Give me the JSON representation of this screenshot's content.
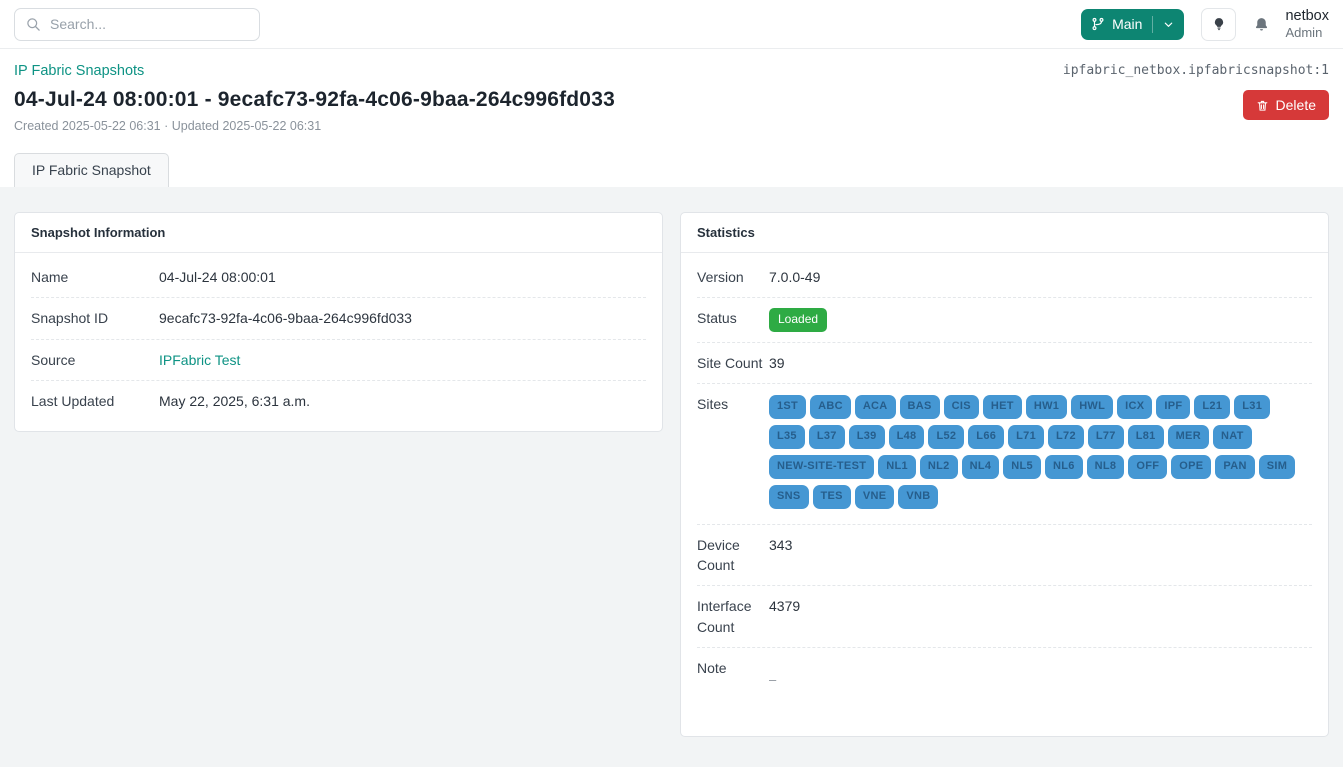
{
  "topbar": {
    "search_placeholder": "Search...",
    "branch_label": "Main",
    "user_name": "netbox",
    "user_role": "Admin"
  },
  "header": {
    "breadcrumb": "IP Fabric Snapshots",
    "object_id": "ipfabric_netbox.ipfabricsnapshot:1",
    "title": "04-Jul-24 08:00:01 - 9ecafc73-92fa-4c06-9baa-264c996fd033",
    "meta": "Created 2025-05-22 06:31 · Updated 2025-05-22 06:31",
    "delete_label": "Delete"
  },
  "tab": {
    "label": "IP Fabric Snapshot"
  },
  "snapshot_info": {
    "title": "Snapshot Information",
    "rows": [
      {
        "label": "Name",
        "value": "04-Jul-24 08:00:01"
      },
      {
        "label": "Snapshot ID",
        "value": "9ecafc73-92fa-4c06-9baa-264c996fd033"
      },
      {
        "label": "Source",
        "value": "IPFabric Test"
      },
      {
        "label": "Last Updated",
        "value": "May 22, 2025, 6:31 a.m."
      }
    ]
  },
  "statistics": {
    "title": "Statistics",
    "labels": {
      "version": "Version",
      "status": "Status",
      "site_count": "Site Count",
      "sites": "Sites",
      "device_count": "Device Count",
      "interface_count": "Interface Count",
      "note": "Note"
    },
    "version": "7.0.0-49",
    "status": "Loaded",
    "site_count": "39",
    "sites": [
      "1ST",
      "ABC",
      "ACA",
      "BAS",
      "CIS",
      "HET",
      "HW1",
      "HWL",
      "ICX",
      "IPF",
      "L21",
      "L31",
      "L35",
      "L37",
      "L39",
      "L48",
      "L52",
      "L66",
      "L71",
      "L72",
      "L77",
      "L81",
      "MER",
      "NAT",
      "NEW-SITE-TEST",
      "NL1",
      "NL2",
      "NL4",
      "NL5",
      "NL6",
      "NL8",
      "OFF",
      "OPE",
      "PAN",
      "SIM",
      "SNS",
      "TES",
      "VNE",
      "VNB"
    ],
    "device_count": "343",
    "interface_count": "4379",
    "note": "–"
  },
  "colors": {
    "accent_teal": "#0d8572",
    "link_teal": "#0e9384",
    "status_green": "#2eab44",
    "site_badge_blue": "#4597d3",
    "delete_red": "#d63939"
  }
}
